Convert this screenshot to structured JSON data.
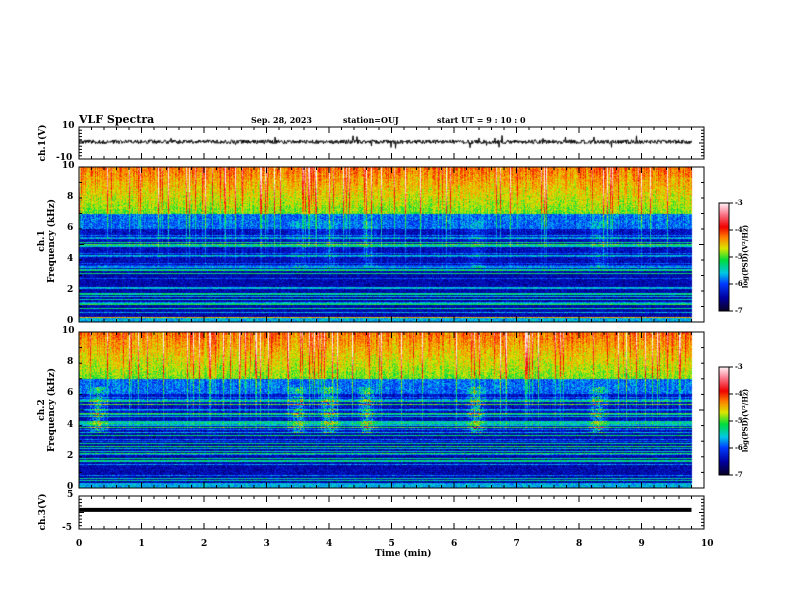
{
  "header": {
    "title": "VLF Spectra",
    "date": "Sep. 28, 2023",
    "station": "station=OUJ",
    "start": "start  UT =  9 : 10 : 0"
  },
  "colors": {
    "trace": "#000000",
    "frame": "#000000"
  },
  "chart_data": [
    {
      "type": "line",
      "name": "ch1-waveform",
      "ylabel": "ch.1(V)",
      "ylim": [
        -10,
        10
      ],
      "yticks": [
        "10",
        "-10"
      ],
      "xlim": [
        0,
        10
      ],
      "data_end_min": 9.8,
      "description_level": "noisy trace around ~1 V with amplitude ~1 V"
    },
    {
      "type": "heatmap",
      "name": "ch1-spectrogram",
      "ylabel": "ch.1\nFrequency (kHz)",
      "ylabel_ch": "ch.1",
      "ylabel_freq": "Frequency (kHz)",
      "ylim": [
        0,
        10
      ],
      "yticks": [
        "0",
        "2",
        "4",
        "6",
        "8",
        "10"
      ],
      "xlim": [
        0,
        10
      ],
      "data_end_min": 9.8,
      "colorbar": {
        "label": "log(PSD)(V²/Hz)",
        "range": [
          -7,
          -3
        ],
        "ticks": [
          "-3",
          "-4",
          "-5",
          "-6",
          "-7"
        ]
      },
      "hiss_cutoff_khz": 7,
      "burst_times_min": [
        3.5,
        4.0,
        4.6,
        6.35,
        8.3
      ]
    },
    {
      "type": "heatmap",
      "name": "ch2-spectrogram",
      "ylabel_ch": "ch.2",
      "ylabel_freq": "Frequency (kHz)",
      "ylim": [
        0,
        10
      ],
      "yticks": [
        "0",
        "2",
        "4",
        "6",
        "8",
        "10"
      ],
      "xlim": [
        0,
        10
      ],
      "data_end_min": 9.8,
      "colorbar": {
        "label": "log(PSD)(V²/Hz)",
        "range": [
          -7,
          -3
        ],
        "ticks": [
          "-3",
          "-4",
          "-5",
          "-6",
          "-7"
        ]
      },
      "hiss_cutoff_khz": 7,
      "burst_times_min": [
        0.3,
        3.5,
        4.0,
        4.6,
        6.35,
        8.3
      ]
    },
    {
      "type": "line",
      "name": "ch3-waveform",
      "ylabel": "ch.3(V)",
      "ylim": [
        -5,
        5
      ],
      "yticks": [
        "5",
        "-5"
      ],
      "constant_value": 0.8
    },
    {
      "xlabel": "Time (min)",
      "xticks": [
        "0",
        "1",
        "2",
        "3",
        "4",
        "5",
        "6",
        "7",
        "8",
        "9",
        "10"
      ]
    }
  ]
}
